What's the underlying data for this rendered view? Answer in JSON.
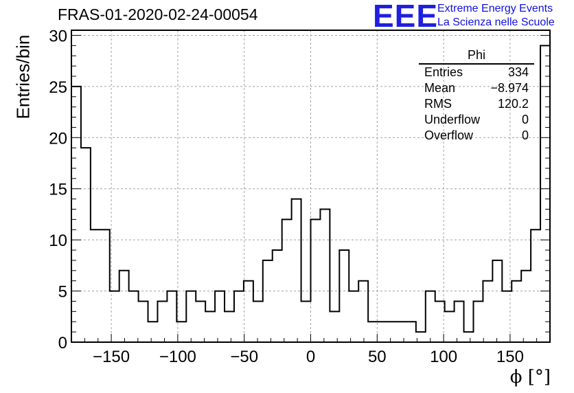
{
  "chart_data": {
    "type": "bar",
    "title": "FRAS-01-2020-02-24-00054",
    "xlabel": "ϕ [°]",
    "ylabel": "Entries/bin",
    "xlim": [
      -180,
      180
    ],
    "ylim": [
      0,
      30.5
    ],
    "xticks": [
      -150,
      -100,
      -50,
      0,
      50,
      100,
      150
    ],
    "xtick_labels": [
      "−150",
      "−100",
      "−50",
      "0",
      "50",
      "100",
      "150"
    ],
    "yticks": [
      0,
      5,
      10,
      15,
      20,
      25,
      30
    ],
    "grid": true,
    "bin_width": 7.2,
    "bin_edges_start": -180,
    "values": [
      25,
      19,
      11,
      11,
      5,
      7,
      5,
      4,
      2,
      4,
      5,
      2,
      5,
      4,
      3,
      5,
      3,
      5,
      6,
      4,
      8,
      9,
      12,
      14,
      4,
      12,
      13,
      3,
      9,
      5,
      6,
      2,
      2,
      2,
      2,
      2,
      1,
      5,
      4,
      3,
      4,
      1,
      4,
      6,
      8,
      5,
      6,
      7,
      11,
      29
    ]
  },
  "stats_box": {
    "title": "Phi",
    "rows": [
      {
        "label": "Entries",
        "value": "334"
      },
      {
        "label": "Mean",
        "value": "−8.974"
      },
      {
        "label": "RMS",
        "value": "120.2"
      },
      {
        "label": "Underflow",
        "value": "0"
      },
      {
        "label": "Overflow",
        "value": "0"
      }
    ]
  },
  "logo": {
    "text": "EEE",
    "line1": "Extreme Energy Events",
    "line2": "La Scienza nelle Scuole",
    "color": "#1f1fe0"
  }
}
